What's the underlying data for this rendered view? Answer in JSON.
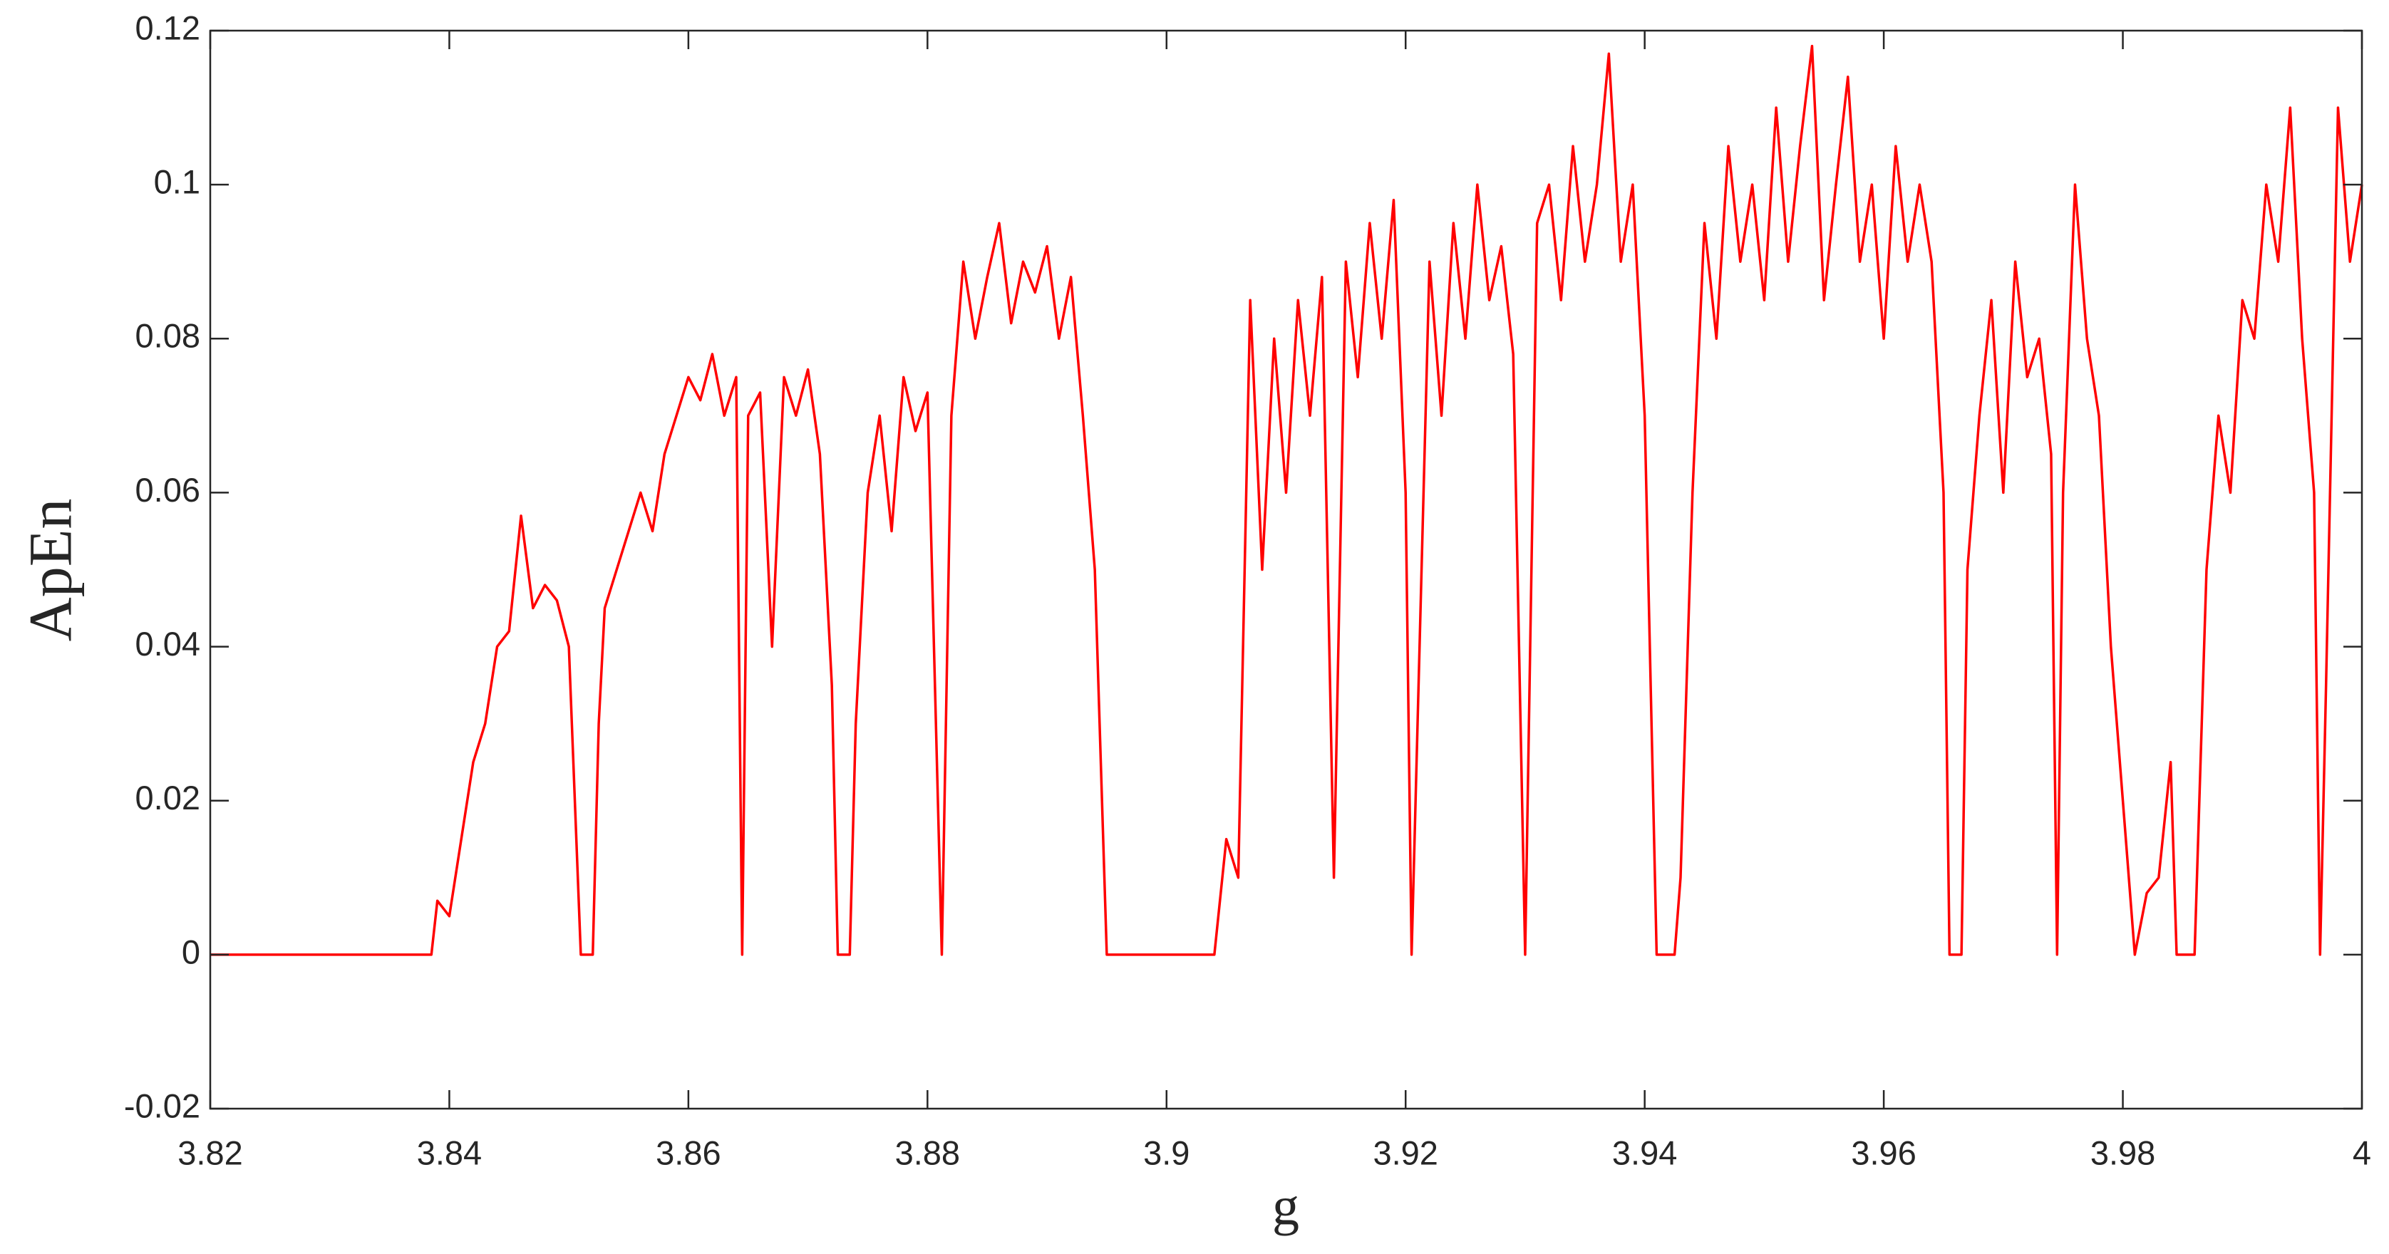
{
  "chart_data": {
    "type": "line",
    "xlabel": "g",
    "ylabel": "ApEn",
    "x": [
      3.82,
      3.8385,
      3.839,
      3.84,
      3.841,
      3.842,
      3.843,
      3.844,
      3.845,
      3.846,
      3.847,
      3.848,
      3.849,
      3.85,
      3.851,
      3.852,
      3.8525,
      3.853,
      3.854,
      3.855,
      3.856,
      3.857,
      3.858,
      3.859,
      3.86,
      3.861,
      3.862,
      3.863,
      3.864,
      3.8645,
      3.865,
      3.866,
      3.867,
      3.868,
      3.869,
      3.87,
      3.871,
      3.872,
      3.8725,
      3.8735,
      3.874,
      3.875,
      3.876,
      3.877,
      3.878,
      3.879,
      3.88,
      3.8812,
      3.882,
      3.883,
      3.884,
      3.885,
      3.886,
      3.887,
      3.888,
      3.889,
      3.89,
      3.891,
      3.892,
      3.893,
      3.894,
      3.895,
      3.904,
      3.905,
      3.906,
      3.907,
      3.908,
      3.909,
      3.91,
      3.911,
      3.912,
      3.913,
      3.914,
      3.915,
      3.916,
      3.917,
      3.918,
      3.919,
      3.92,
      3.9205,
      3.921,
      3.922,
      3.923,
      3.924,
      3.925,
      3.926,
      3.927,
      3.928,
      3.929,
      3.93,
      3.931,
      3.932,
      3.933,
      3.934,
      3.935,
      3.936,
      3.937,
      3.938,
      3.939,
      3.94,
      3.941,
      3.9425,
      3.943,
      3.944,
      3.945,
      3.946,
      3.947,
      3.948,
      3.949,
      3.95,
      3.951,
      3.952,
      3.953,
      3.954,
      3.955,
      3.956,
      3.957,
      3.958,
      3.959,
      3.96,
      3.961,
      3.962,
      3.963,
      3.964,
      3.965,
      3.9655,
      3.9665,
      3.967,
      3.968,
      3.969,
      3.97,
      3.971,
      3.972,
      3.973,
      3.974,
      3.9745,
      3.975,
      3.976,
      3.977,
      3.978,
      3.979,
      3.98,
      3.981,
      3.982,
      3.983,
      3.984,
      3.9845,
      3.986,
      3.987,
      3.988,
      3.989,
      3.99,
      3.991,
      3.992,
      3.993,
      3.994,
      3.995,
      3.996,
      3.9965,
      3.997,
      3.998,
      3.999,
      4.0
    ],
    "series": [
      {
        "color": "#ff0000",
        "values": [
          0,
          0,
          0.007,
          0.005,
          0.015,
          0.025,
          0.03,
          0.04,
          0.042,
          0.057,
          0.045,
          0.048,
          0.046,
          0.04,
          0,
          0,
          0.03,
          0.045,
          0.05,
          0.055,
          0.06,
          0.055,
          0.065,
          0.07,
          0.075,
          0.072,
          0.078,
          0.07,
          0.075,
          0,
          0.07,
          0.073,
          0.04,
          0.075,
          0.07,
          0.076,
          0.065,
          0.035,
          0,
          0,
          0.03,
          0.06,
          0.07,
          0.055,
          0.075,
          0.068,
          0.073,
          0,
          0.07,
          0.09,
          0.08,
          0.088,
          0.095,
          0.082,
          0.09,
          0.086,
          0.092,
          0.08,
          0.088,
          0.07,
          0.05,
          0,
          0,
          0.015,
          0.01,
          0.085,
          0.05,
          0.08,
          0.06,
          0.085,
          0.07,
          0.088,
          0.01,
          0.09,
          0.075,
          0.095,
          0.08,
          0.098,
          0.06,
          0,
          0.03,
          0.09,
          0.07,
          0.095,
          0.08,
          0.1,
          0.085,
          0.092,
          0.078,
          0,
          0.095,
          0.1,
          0.085,
          0.105,
          0.09,
          0.1,
          0.117,
          0.09,
          0.1,
          0.07,
          0,
          0,
          0.01,
          0.06,
          0.095,
          0.08,
          0.105,
          0.09,
          0.1,
          0.085,
          0.11,
          0.09,
          0.105,
          0.118,
          0.085,
          0.1,
          0.114,
          0.09,
          0.1,
          0.08,
          0.105,
          0.09,
          0.1,
          0.09,
          0.06,
          0,
          0,
          0.05,
          0.07,
          0.085,
          0.06,
          0.09,
          0.075,
          0.08,
          0.065,
          0,
          0.06,
          0.1,
          0.08,
          0.07,
          0.04,
          0.02,
          0,
          0.008,
          0.01,
          0.025,
          0,
          0,
          0.05,
          0.07,
          0.06,
          0.085,
          0.08,
          0.1,
          0.09,
          0.11,
          0.08,
          0.06,
          0,
          0.035,
          0.11,
          0.09,
          0.1
        ]
      }
    ],
    "xlim": [
      3.82,
      4
    ],
    "ylim": [
      -0.02,
      0.12
    ],
    "xticks": [
      3.82,
      3.84,
      3.86,
      3.88,
      3.9,
      3.92,
      3.94,
      3.96,
      3.98,
      4
    ],
    "yticks": [
      -0.02,
      0,
      0.02,
      0.04,
      0.06,
      0.08,
      0.1,
      0.12
    ]
  }
}
